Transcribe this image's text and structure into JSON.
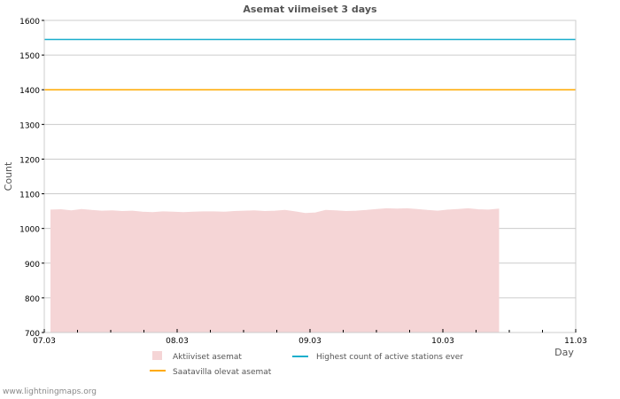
{
  "chart_data": {
    "type": "area",
    "title": "Asemat viimeiset 3 days",
    "xlabel": "Day",
    "ylabel": "Count",
    "ylim": [
      700,
      1600
    ],
    "yticks": [
      700,
      800,
      900,
      1000,
      1100,
      1200,
      1300,
      1400,
      1500,
      1600
    ],
    "xlim_days": [
      0,
      4
    ],
    "xtick_labels": [
      "07.03",
      "08.03",
      "09.03",
      "10.03",
      "11.03"
    ],
    "grid": true,
    "legend_placement": "bottom",
    "series": [
      {
        "name": "Aktiiviset asemat",
        "kind": "area",
        "color": "#f5d5d6",
        "x_days_start": 0.05,
        "x_days_end": 3.42,
        "values": [
          1053,
          1054,
          1051,
          1055,
          1052,
          1050,
          1051,
          1049,
          1050,
          1047,
          1046,
          1048,
          1047,
          1046,
          1047,
          1048,
          1048,
          1047,
          1049,
          1050,
          1051,
          1049,
          1050,
          1052,
          1048,
          1043,
          1045,
          1052,
          1051,
          1049,
          1050,
          1052,
          1055,
          1057,
          1056,
          1057,
          1055,
          1052,
          1050,
          1053,
          1055,
          1057,
          1054,
          1053,
          1056
        ]
      },
      {
        "name": "Highest count of active stations ever",
        "kind": "line",
        "color": "#1aaecc",
        "value": 1545
      },
      {
        "name": "Saatavilla olevat asemat",
        "kind": "line",
        "color": "#ffaa00",
        "value": 1400
      }
    ]
  },
  "footer": "www.lightningmaps.org"
}
